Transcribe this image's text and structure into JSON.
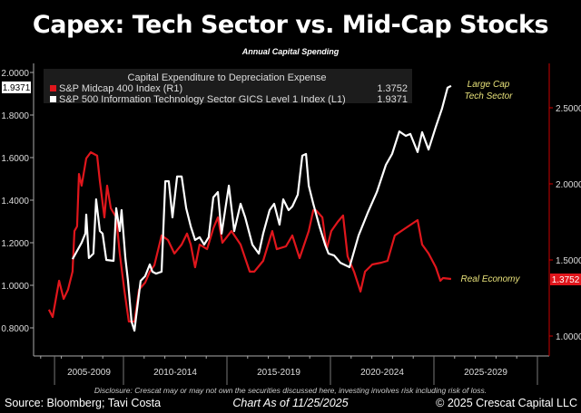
{
  "title": "Capex: Tech Sector vs. Mid-Cap Stocks",
  "subtitle": "Annual Capital Spending",
  "disclosure": "Disclosure: Crescat may or may not own the securities discussed here, investing involves risk including risk of loss.",
  "footer": {
    "source": "Source: Bloomberg; Tavi Costa",
    "date": "Chart As of 11/25/2025",
    "copyright": "© 2025 Crescat Capital LLC"
  },
  "chart_data": {
    "type": "line",
    "legend_title": "Capital Expenditure to Depreciation Expense",
    "legend_placement": "top-left",
    "grid": false,
    "x_tick_labels": [
      "2005-2009",
      "2010-2014",
      "2015-2019",
      "2020-2024",
      "2025-2029"
    ],
    "y_left": {
      "ticks": [
        "0.8000",
        "1.0000",
        "1.2000",
        "1.4000",
        "1.6000",
        "1.8000",
        "2.0000"
      ],
      "range": [
        0.72,
        2.05
      ]
    },
    "y_right": {
      "ticks": [
        "1.0000",
        "1.5000",
        "2.0000",
        "2.5000"
      ],
      "range": [
        0.98,
        2.73
      ]
    },
    "annotations": [
      {
        "text_lines": [
          "Large Cap",
          "Tech Sector"
        ],
        "color": "#e8e27a"
      },
      {
        "text_lines": [
          "Real Economy"
        ],
        "color": "#e8e27a"
      }
    ],
    "series": [
      {
        "name": "S&P Midcap 400 Index  (R1)",
        "axis": "right",
        "color": "#e0161c",
        "last_value": "1.3752",
        "x": [
          2006.4,
          2006.58,
          2006.89,
          2007.11,
          2007.32,
          2007.54,
          2007.63,
          2007.76,
          2007.85,
          2007.98,
          2008.2,
          2008.42,
          2008.73,
          2008.86,
          2009.08,
          2009.21,
          2009.39,
          2009.65,
          2009.82,
          2010.04,
          2010.26,
          2010.53,
          2010.75,
          2011.05,
          2011.27,
          2011.49,
          2011.84,
          2012.15,
          2012.46,
          2012.81,
          2013.07,
          2013.25,
          2013.46,
          2013.68,
          2014.04,
          2014.34,
          2014.56,
          2014.78,
          2015.22,
          2015.66,
          2016.1,
          2016.32,
          2016.75,
          2017.19,
          2017.41,
          2017.85,
          2018.16,
          2018.51,
          2018.95,
          2019.17,
          2019.3,
          2019.61,
          2019.82,
          2020.04,
          2020.35,
          2020.61,
          2020.83,
          2021.14,
          2021.45,
          2021.67,
          2022.02,
          2022.46,
          2022.76,
          2023.11,
          2023.55,
          2024.21,
          2024.43,
          2024.74,
          2025.09,
          2025.31,
          2025.44,
          2025.83
        ],
        "y": [
          1.173,
          1.125,
          1.363,
          1.244,
          1.304,
          1.423,
          1.69,
          1.72,
          2.065,
          1.988,
          2.167,
          2.208,
          2.185,
          2.018,
          1.78,
          1.988,
          1.839,
          1.78,
          1.542,
          1.304,
          1.095,
          1.095,
          1.304,
          1.351,
          1.423,
          1.464,
          1.661,
          1.631,
          1.542,
          1.601,
          1.673,
          1.601,
          1.452,
          1.601,
          1.571,
          1.708,
          1.78,
          1.613,
          1.69,
          1.601,
          1.423,
          1.423,
          1.494,
          1.69,
          1.571,
          1.589,
          1.661,
          1.512,
          1.69,
          1.827,
          1.827,
          1.78,
          1.571,
          1.69,
          1.75,
          1.792,
          1.524,
          1.423,
          1.292,
          1.423,
          1.47,
          1.482,
          1.494,
          1.661,
          1.702,
          1.762,
          1.601,
          1.542,
          1.452,
          1.363,
          1.381,
          1.3752
        ]
      },
      {
        "name": "S&P 500 Information Technology Sector GICS Level 1 Index  (L1)",
        "axis": "left",
        "color": "#ffffff",
        "last_value": "1.9371",
        "x": [
          2007.54,
          2007.98,
          2008.16,
          2008.2,
          2008.33,
          2008.55,
          2008.68,
          2008.86,
          2008.99,
          2009.17,
          2009.52,
          2009.65,
          2009.82,
          2009.91,
          2010.09,
          2010.22,
          2010.39,
          2010.53,
          2010.61,
          2010.83,
          2011.05,
          2011.27,
          2011.4,
          2011.58,
          2011.84,
          2012.02,
          2012.19,
          2012.37,
          2012.59,
          2012.81,
          2013.03,
          2013.25,
          2013.46,
          2013.68,
          2013.9,
          2014.12,
          2014.34,
          2014.56,
          2014.74,
          2015.09,
          2015.35,
          2015.66,
          2015.88,
          2016.23,
          2016.54,
          2016.75,
          2017.06,
          2017.28,
          2017.54,
          2017.72,
          2017.98,
          2018.16,
          2018.42,
          2018.64,
          2018.82,
          2018.95,
          2019.17,
          2019.47,
          2019.74,
          2019.91,
          2020.18,
          2020.48,
          2020.92,
          2021.36,
          2021.8,
          2022.24,
          2022.68,
          2022.98,
          2023.33,
          2023.64,
          2023.86,
          2024.21,
          2024.43,
          2024.74,
          2025.09,
          2025.39,
          2025.66,
          2025.83
        ],
        "y": [
          1.123,
          1.2,
          1.243,
          1.332,
          1.128,
          1.149,
          1.404,
          1.255,
          1.243,
          1.119,
          1.115,
          1.362,
          1.255,
          1.353,
          1.128,
          1.021,
          0.83,
          0.787,
          0.851,
          1.021,
          1.043,
          1.098,
          1.064,
          1.055,
          1.064,
          1.489,
          1.489,
          1.319,
          1.511,
          1.511,
          1.362,
          1.277,
          1.213,
          1.226,
          1.191,
          1.226,
          1.413,
          1.438,
          1.243,
          1.468,
          1.255,
          1.383,
          1.319,
          1.191,
          1.149,
          1.243,
          1.353,
          1.383,
          1.285,
          1.404,
          1.353,
          1.37,
          1.426,
          1.609,
          1.617,
          1.468,
          1.383,
          1.277,
          1.191,
          1.149,
          1.14,
          1.106,
          1.085,
          1.234,
          1.34,
          1.438,
          1.566,
          1.617,
          1.723,
          1.702,
          1.711,
          1.626,
          1.719,
          1.638,
          1.745,
          1.83,
          1.928,
          1.9371
        ]
      }
    ]
  }
}
